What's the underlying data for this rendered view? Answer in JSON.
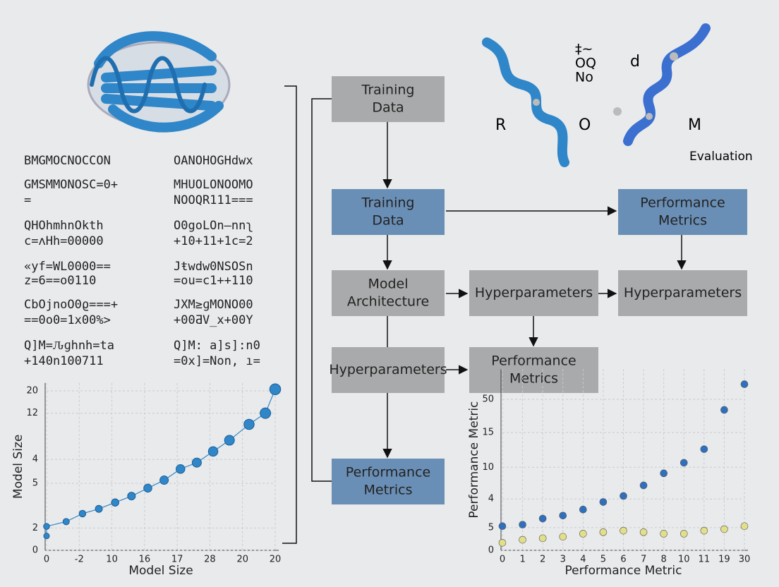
{
  "text_blocks": {
    "left": [
      "BMGMOCNOCCON",
      "GMSMMONOSC=0+",
      "=",
      "QHOhmhnOkth",
      "c=ʌHh=00000",
      "«yf=WL0000==",
      "z=6==o0110",
      "CbOjnoO0ϱ===+",
      "==0o0=1x00%>",
      "Q]M=Ԉɡhnh=ta",
      "+140n100711"
    ],
    "right": [
      "OANOHOGHdwx",
      "MHUOLONOOMO",
      "NOOQR111===",
      "O0goLOn–nnʅ",
      "+10+11+1c=2",
      "Jŧwdw0NSOSn",
      "=ou=c1++110",
      "JXM≥ɡMONO00",
      "+00ƋV_x+00Y",
      "Q]M: a]s]:n0",
      "=0x]=Non, ı="
    ]
  },
  "labels": {
    "r": "R",
    "o": "O",
    "m": "M",
    "d": "d",
    "sym": [
      "‡~",
      "OQ",
      "No"
    ],
    "evaluation": "Evaluation"
  },
  "nodes": [
    {
      "lines": [
        "Training",
        "Data"
      ]
    },
    {
      "lines": [
        "Training",
        "Data"
      ]
    },
    {
      "lines": [
        "Model",
        "Architecture"
      ]
    },
    {
      "lines": [
        "Hyperparameters"
      ]
    },
    {
      "lines": [
        "Performance",
        "Metrics"
      ]
    },
    {
      "lines": [
        "Hyperparameters"
      ]
    },
    {
      "lines": [
        "Hyperparameters"
      ]
    },
    {
      "lines": [
        "Performance",
        "Metrics"
      ]
    },
    {
      "lines": [
        "Performance",
        "Metrics"
      ]
    }
  ],
  "chart_data": [
    {
      "type": "line",
      "xlabel": "Model Size",
      "ylabel": "Model Size",
      "grid": true,
      "x": [
        0,
        0,
        0.6,
        1.1,
        1.6,
        2.1,
        2.6,
        3.1,
        3.6,
        4.1,
        4.6,
        5.1,
        5.6,
        6.2,
        6.7,
        7
      ],
      "series": [
        {
          "color": "#2f86c8",
          "values": [
            0.9,
            1.5,
            1.8,
            2.3,
            2.6,
            3.0,
            3.4,
            3.9,
            4.4,
            5.1,
            5.5,
            6.2,
            6.9,
            7.9,
            8.6,
            10.1
          ]
        }
      ],
      "xlim": [
        0,
        7
      ],
      "ylim": [
        0,
        10.5
      ],
      "xticks": [
        0,
        {
          "value": 1,
          "label": "-2"
        },
        {
          "value": 2,
          "label": "10"
        },
        {
          "value": 3,
          "label": "16"
        },
        {
          "value": 4,
          "label": "17"
        },
        {
          "value": 5,
          "label": "28"
        },
        {
          "value": 6,
          "label": "20"
        },
        {
          "value": 7,
          "label": "20"
        }
      ],
      "yticks": [
        0,
        {
          "value": 1.4,
          "label": "2"
        },
        {
          "value": 4.2,
          "label": "5"
        },
        {
          "value": 5.7,
          "label": "4"
        },
        {
          "value": 8.6,
          "label": "12"
        },
        {
          "value": 10,
          "label": "20"
        }
      ]
    },
    {
      "type": "scatter",
      "xlabel": "Performance Metric",
      "ylabel": "Performance Metric",
      "grid": true,
      "categories": [
        "0",
        "1",
        "2",
        "3",
        "4",
        "5",
        "6",
        "7",
        "8",
        "10",
        "11",
        "19",
        "30"
      ],
      "series": [
        {
          "color": "#2f6fbf",
          "values": [
            1.6,
            1.7,
            2.1,
            2.3,
            2.7,
            3.2,
            3.6,
            4.3,
            5.1,
            5.8,
            6.7,
            9.3,
            11.0
          ]
        },
        {
          "color": "#e2df8a",
          "values": [
            0.5,
            0.7,
            0.8,
            0.9,
            1.1,
            1.2,
            1.3,
            1.2,
            1.1,
            1.1,
            1.3,
            1.4,
            1.6
          ]
        }
      ],
      "ylim": [
        0,
        12
      ],
      "yticks": [
        0,
        {
          "value": 1.5,
          "label": "5"
        },
        {
          "value": 3.4,
          "label": "4"
        },
        {
          "value": 5.5,
          "label": "10"
        },
        {
          "value": 7.8,
          "label": "15"
        },
        {
          "value": 10,
          "label": "50"
        }
      ]
    }
  ]
}
